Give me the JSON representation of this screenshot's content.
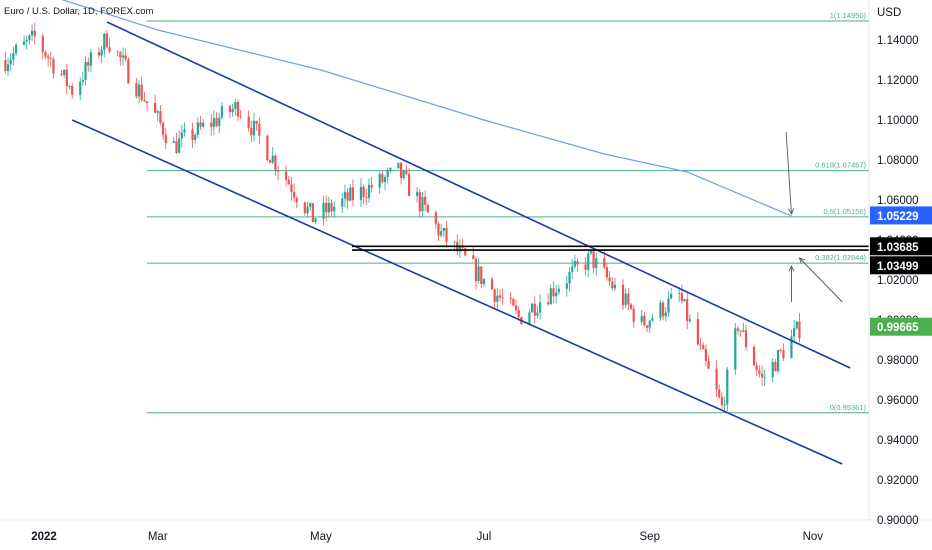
{
  "symbol_title": "Euro / U.S. Dollar, 1D, FOREX.com",
  "currency": "USD",
  "colors": {
    "up": "#26a69a",
    "down": "#ef5350",
    "channel": "#1a3aa8",
    "fib": "#4caf8a",
    "ma": "#6fa0e0",
    "last_price_bg": "#4caf50",
    "ma_price_bg": "#2962ff",
    "level_bg": "#000000"
  },
  "chart_data": {
    "type": "candlestick",
    "ylim": [
      0.9,
      1.16
    ],
    "x_range": [
      "2022-01-01",
      "2022-11-22"
    ],
    "price_ticks": [
      "1.14000",
      "1.12000",
      "1.10000",
      "1.08000",
      "1.06000",
      "1.04000",
      "1.02000",
      "1.00000",
      "0.98000",
      "0.96000",
      "0.94000",
      "0.92000",
      "0.90000"
    ],
    "time_ticks": [
      {
        "label": "2022",
        "date": "2022-01-01"
      },
      {
        "label": "Mar",
        "date": "2022-03-01"
      },
      {
        "label": "May",
        "date": "2022-05-01"
      },
      {
        "label": "Jul",
        "date": "2022-07-01"
      },
      {
        "label": "Sep",
        "date": "2022-09-01"
      },
      {
        "label": "Nov",
        "date": "2022-11-01"
      }
    ],
    "fib_levels": [
      {
        "label": "1(1.14950)",
        "price": 1.1495
      },
      {
        "label": "0.618(1.07467)",
        "price": 1.07467
      },
      {
        "label": "0.5(1.05156)",
        "price": 1.05156
      },
      {
        "label": "0.382(1.02844)",
        "price": 1.02844
      },
      {
        "label": "0(0.95361)",
        "price": 0.95361
      }
    ],
    "horizontal_levels": [
      {
        "label": "1.03685",
        "price": 1.03685
      },
      {
        "label": "1.03499",
        "price": 1.03499
      }
    ],
    "price_labels": [
      {
        "label": "1.05229",
        "price": 1.05229,
        "kind": "ma"
      },
      {
        "label": "0.99665",
        "price": 0.99665,
        "kind": "last"
      }
    ],
    "channel_lines": [
      {
        "from": {
          "date": "2022-02-10",
          "price": 1.149
        },
        "to": {
          "date": "2022-11-15",
          "price": 0.976
        }
      },
      {
        "from": {
          "date": "2022-01-28",
          "price": 1.1
        },
        "to": {
          "date": "2022-11-12",
          "price": 0.928
        }
      }
    ],
    "moving_average": [
      {
        "date": "2022-01-01",
        "price": 1.17
      },
      {
        "date": "2022-03-01",
        "price": 1.145
      },
      {
        "date": "2022-05-01",
        "price": 1.125
      },
      {
        "date": "2022-07-01",
        "price": 1.1
      },
      {
        "date": "2022-08-15",
        "price": 1.083
      },
      {
        "date": "2022-09-15",
        "price": 1.074
      },
      {
        "date": "2022-10-24",
        "price": 1.052
      }
    ],
    "candle_start": "2022-01-03",
    "close_anchors": [
      {
        "date": "2022-01-03",
        "price": 1.13
      },
      {
        "date": "2022-01-14",
        "price": 1.141
      },
      {
        "date": "2022-01-28",
        "price": 1.115
      },
      {
        "date": "2022-02-10",
        "price": 1.141
      },
      {
        "date": "2022-03-07",
        "price": 1.087
      },
      {
        "date": "2022-03-31",
        "price": 1.107
      },
      {
        "date": "2022-04-28",
        "price": 1.051
      },
      {
        "date": "2022-05-30",
        "price": 1.074
      },
      {
        "date": "2022-06-15",
        "price": 1.043
      },
      {
        "date": "2022-07-14",
        "price": 1.001
      },
      {
        "date": "2022-08-10",
        "price": 1.031
      },
      {
        "date": "2022-08-29",
        "price": 0.998
      },
      {
        "date": "2022-09-12",
        "price": 1.012
      },
      {
        "date": "2022-09-28",
        "price": 0.956
      },
      {
        "date": "2022-10-04",
        "price": 0.998
      },
      {
        "date": "2022-10-13",
        "price": 0.97
      },
      {
        "date": "2022-10-27",
        "price": 0.996
      }
    ],
    "arrows": [
      {
        "from": {
          "date": "2022-10-22",
          "price": 1.094
        },
        "to": {
          "date": "2022-10-24",
          "price": 1.053
        }
      },
      {
        "from": {
          "date": "2022-10-24",
          "price": 1.009
        },
        "to": {
          "date": "2022-10-24",
          "price": 1.027
        }
      },
      {
        "from": {
          "date": "2022-11-12",
          "price": 1.009
        },
        "to": {
          "date": "2022-10-27",
          "price": 1.031
        }
      }
    ]
  }
}
